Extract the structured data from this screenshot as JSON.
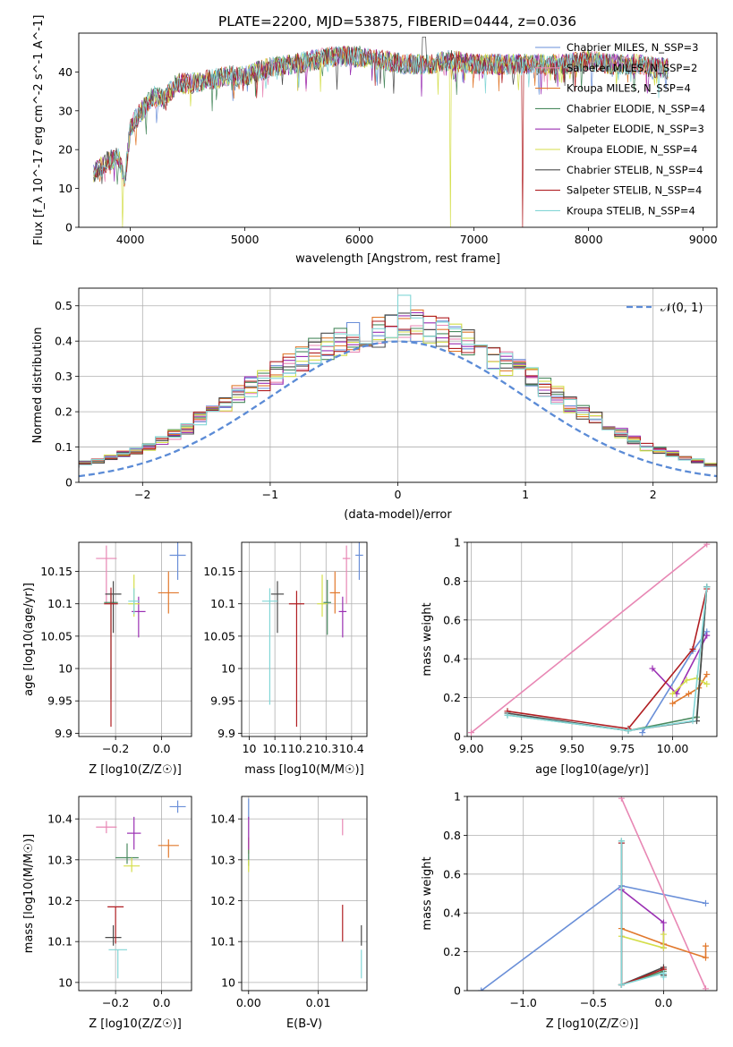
{
  "title": "PLATE=2200, MJD=53875, FIBERID=0444, z=0.036",
  "colors": [
    "#6a8fd8",
    "#e887b4",
    "#e1782c",
    "#4a8a5f",
    "#9a2fb3",
    "#d4de4a",
    "#4b4b4b",
    "#b01e22",
    "#82d6d6"
  ],
  "legend": [
    "Chabrier MILES, N_SSP=3",
    "Salpeter MILES, N_SSP=2",
    "Kroupa MILES, N_SSP=4",
    "Chabrier ELODIE, N_SSP=4",
    "Salpeter ELODIE, N_SSP=3",
    "Kroupa ELODIE, N_SSP=4",
    "Chabrier STELIB, N_SSP=4",
    "Salpeter STELIB, N_SSP=4",
    "Kroupa STELIB, N_SSP=4"
  ],
  "chart_data": [
    {
      "id": "spectrum",
      "type": "line",
      "xlabel": "wavelength [Angstrom, rest frame]",
      "ylabel": "Flux [f_λ 10^-17 erg cm^-2 s^-1 A^-1]",
      "xlim": [
        3550,
        9120
      ],
      "ylim": [
        0,
        50
      ],
      "xticks": [
        4000,
        5000,
        6000,
        7000,
        8000,
        9000
      ],
      "yticks": [
        0,
        10,
        20,
        30,
        40
      ],
      "grid": false,
      "legend_position": "right",
      "envelope": {
        "x": [
          3680,
          3800,
          3900,
          3950,
          4000,
          4100,
          4200,
          4300,
          4400,
          4500,
          4700,
          4860,
          5000,
          5200,
          5400,
          5600,
          5800,
          6000,
          6200,
          6400,
          6600,
          6800,
          7000,
          7200,
          7400,
          7600,
          7800,
          8000,
          8200,
          8400,
          8600,
          8700
        ],
        "y": [
          14,
          17,
          18,
          12,
          26,
          30,
          34,
          33,
          37,
          37,
          38,
          39,
          39,
          41,
          42,
          43,
          44,
          44,
          43,
          42,
          42,
          43,
          42,
          42,
          42,
          42,
          42,
          43,
          42,
          42,
          41,
          41
        ]
      },
      "drops": [
        {
          "series": "Kroupa ELODIE, N_SSP=4",
          "x": 3930
        },
        {
          "series": "Kroupa ELODIE, N_SSP=4",
          "x": 6790
        },
        {
          "series": "Salpeter STELIB, N_SSP=4",
          "x": 7420
        }
      ]
    },
    {
      "id": "residuals",
      "type": "bar",
      "xlabel": "(data-model)/error",
      "ylabel": "Normed distribution",
      "xlim": [
        -2.5,
        2.5
      ],
      "ylim": [
        0,
        0.55
      ],
      "xticks": [
        -2,
        -1,
        0,
        1,
        2
      ],
      "yticks": [
        0.0,
        0.1,
        0.2,
        0.3,
        0.4,
        0.5
      ],
      "grid": true,
      "legend_label": "𝒩(0, 1)",
      "bin_width": 0.1,
      "reference_curve": "N(0,1) standard normal density",
      "base_bins": [
        0.02,
        0.025,
        0.03,
        0.035,
        0.045,
        0.055,
        0.06,
        0.07,
        0.08,
        0.09,
        0.1,
        0.12,
        0.135,
        0.15,
        0.18,
        0.2,
        0.22,
        0.25,
        0.27,
        0.29,
        0.31,
        0.33,
        0.35,
        0.37,
        0.39,
        0.4,
        0.41,
        0.42,
        0.43,
        0.44,
        0.45,
        0.44,
        0.43,
        0.42,
        0.41,
        0.4,
        0.38,
        0.36,
        0.34,
        0.32,
        0.3,
        0.27,
        0.25,
        0.22,
        0.2,
        0.18,
        0.16,
        0.14,
        0.12,
        0.1,
        0.09,
        0.08,
        0.07,
        0.06,
        0.05,
        0.045,
        0.04,
        0.035,
        0.03,
        0.025
      ]
    },
    {
      "id": "age-vs-Z",
      "type": "scatter",
      "xlabel": "Z [log10(Z/Z☉)]",
      "ylabel": "age [log10(age/yr)]",
      "xlim": [
        -0.36,
        0.13
      ],
      "ylim": [
        9.895,
        10.195
      ],
      "xticks": [
        -0.2,
        0.0
      ],
      "xtick_labels": [
        "−0.2",
        "0.0"
      ],
      "yticks": [
        9.9,
        9.95,
        10.0,
        10.05,
        10.1,
        10.15
      ],
      "grid": true,
      "points": [
        {
          "x": 0.07,
          "y": 10.175,
          "xerr": 0.035,
          "yerr": [
            0.038,
            0.02
          ]
        },
        {
          "x": -0.24,
          "y": 10.17,
          "xerr": 0.045,
          "yerr": [
            0.07,
            0.02
          ]
        },
        {
          "x": 0.03,
          "y": 10.117,
          "xerr": 0.045,
          "yerr": [
            0.032,
            0.033
          ]
        },
        {
          "x": -0.22,
          "y": 10.102,
          "xerr": 0.03,
          "yerr": [
            0.15,
            0.015
          ]
        },
        {
          "x": -0.1,
          "y": 10.088,
          "xerr": 0.03,
          "yerr": [
            0.04,
            0.023
          ]
        },
        {
          "x": -0.12,
          "y": 10.1,
          "xerr": 0.025,
          "yerr": [
            0.02,
            0.045
          ]
        },
        {
          "x": -0.21,
          "y": 10.115,
          "xerr": 0.035,
          "yerr": [
            0.06,
            0.02
          ]
        },
        {
          "x": -0.22,
          "y": 10.1,
          "xerr": 0.03,
          "yerr": [
            0.19,
            0.025
          ]
        },
        {
          "x": -0.12,
          "y": 10.104,
          "xerr": 0.025,
          "yerr": [
            0.02,
            0.02
          ]
        }
      ]
    },
    {
      "id": "age-vs-mass",
      "type": "scatter",
      "xlabel": "mass [log10(M/M☉)]",
      "ylabel": "",
      "xlim": [
        9.97,
        10.46
      ],
      "ylim": [
        9.895,
        10.195
      ],
      "xticks": [
        10.0,
        10.1,
        10.2,
        10.3,
        10.4
      ],
      "yticks": [
        9.9,
        9.95,
        10.0,
        10.05,
        10.1,
        10.15
      ],
      "grid": true,
      "points": [
        {
          "x": 10.43,
          "y": 10.175,
          "xerr": 0.015,
          "yerr": [
            0.038,
            0.02
          ]
        },
        {
          "x": 10.38,
          "y": 10.17,
          "xerr": 0.015,
          "yerr": [
            0.07,
            0.02
          ]
        },
        {
          "x": 10.335,
          "y": 10.117,
          "xerr": 0.02,
          "yerr": [
            0.032,
            0.033
          ]
        },
        {
          "x": 10.305,
          "y": 10.102,
          "xerr": 0.015,
          "yerr": [
            0.05,
            0.035
          ]
        },
        {
          "x": 10.365,
          "y": 10.088,
          "xerr": 0.015,
          "yerr": [
            0.04,
            0.023
          ]
        },
        {
          "x": 10.285,
          "y": 10.1,
          "xerr": 0.02,
          "yerr": [
            0.02,
            0.045
          ]
        },
        {
          "x": 10.11,
          "y": 10.115,
          "xerr": 0.025,
          "yerr": [
            0.06,
            0.02
          ]
        },
        {
          "x": 10.185,
          "y": 10.1,
          "xerr": 0.03,
          "yerr": [
            0.19,
            0.02
          ]
        },
        {
          "x": 10.08,
          "y": 10.104,
          "xerr": 0.03,
          "yerr": [
            0.16,
            0.02
          ]
        }
      ]
    },
    {
      "id": "weight-vs-age",
      "type": "line",
      "xlabel": "age [log10(age/yr)]",
      "ylabel": "mass weight",
      "xlim": [
        8.98,
        10.22
      ],
      "ylim": [
        0,
        1
      ],
      "xticks": [
        9.0,
        9.25,
        9.5,
        9.75,
        10.0
      ],
      "xtick_labels": [
        "9.00",
        "9.25",
        "9.50",
        "9.75",
        "10.00"
      ],
      "yticks": [
        0.0,
        0.2,
        0.4,
        0.6,
        0.8,
        1.0
      ],
      "grid": true,
      "series": [
        {
          "name": "Chabrier MILES, N_SSP=3",
          "x": [
            9.85,
            10.1,
            10.17
          ],
          "y": [
            0.02,
            0.44,
            0.54
          ]
        },
        {
          "name": "Salpeter MILES, N_SSP=2",
          "x": [
            9.0,
            10.17
          ],
          "y": [
            0.02,
            0.99
          ]
        },
        {
          "name": "Kroupa MILES, N_SSP=4",
          "x": [
            10.0,
            10.08,
            10.13,
            10.17
          ],
          "y": [
            0.17,
            0.22,
            0.25,
            0.32
          ]
        },
        {
          "name": "Chabrier ELODIE, N_SSP=4",
          "x": [
            9.18,
            9.78,
            10.12,
            10.17
          ],
          "y": [
            0.11,
            0.03,
            0.1,
            0.77
          ]
        },
        {
          "name": "Salpeter ELODIE, N_SSP=3",
          "x": [
            9.9,
            10.02,
            10.17
          ],
          "y": [
            0.35,
            0.22,
            0.52
          ]
        },
        {
          "name": "Kroupa ELODIE, N_SSP=4",
          "x": [
            10.0,
            10.07,
            10.12,
            10.17
          ],
          "y": [
            0.22,
            0.29,
            0.3,
            0.27
          ]
        },
        {
          "name": "Chabrier STELIB, N_SSP=4",
          "x": [
            9.18,
            9.78,
            10.12,
            10.17
          ],
          "y": [
            0.12,
            0.03,
            0.08,
            0.77
          ]
        },
        {
          "name": "Salpeter STELIB, N_SSP=4",
          "x": [
            9.18,
            9.78,
            10.1,
            10.17
          ],
          "y": [
            0.13,
            0.04,
            0.45,
            0.76
          ]
        },
        {
          "name": "Kroupa STELIB, N_SSP=4",
          "x": [
            9.18,
            9.78,
            10.1,
            10.17
          ],
          "y": [
            0.11,
            0.03,
            0.08,
            0.77
          ]
        }
      ]
    },
    {
      "id": "mass-vs-Z",
      "type": "scatter",
      "xlabel": "Z [log10(Z/Z☉)]",
      "ylabel": "mass [log10(M/M☉)]",
      "xlim": [
        -0.36,
        0.13
      ],
      "ylim": [
        9.98,
        10.455
      ],
      "xticks": [
        -0.2,
        0.0
      ],
      "xtick_labels": [
        "−0.2",
        "0.0"
      ],
      "yticks": [
        10.0,
        10.1,
        10.2,
        10.3,
        10.4
      ],
      "grid": true,
      "points": [
        {
          "x": 0.07,
          "y": 10.43,
          "xerr": 0.035,
          "yerr": [
            0.015,
            0.015
          ]
        },
        {
          "x": -0.24,
          "y": 10.38,
          "xerr": 0.045,
          "yerr": [
            0.015,
            0.015
          ]
        },
        {
          "x": 0.03,
          "y": 10.335,
          "xerr": 0.045,
          "yerr": [
            0.03,
            0.015
          ]
        },
        {
          "x": -0.15,
          "y": 10.305,
          "xerr": 0.05,
          "yerr": [
            0.015,
            0.035
          ]
        },
        {
          "x": -0.12,
          "y": 10.365,
          "xerr": 0.03,
          "yerr": [
            0.04,
            0.04
          ]
        },
        {
          "x": -0.13,
          "y": 10.285,
          "xerr": 0.035,
          "yerr": [
            0.015,
            0.02
          ]
        },
        {
          "x": -0.21,
          "y": 10.11,
          "xerr": 0.035,
          "yerr": [
            0.02,
            0.03
          ]
        },
        {
          "x": -0.2,
          "y": 10.185,
          "xerr": 0.035,
          "yerr": [
            0.09,
            0.0
          ]
        },
        {
          "x": -0.19,
          "y": 10.08,
          "xerr": 0.04,
          "yerr": [
            0.07,
            0.0
          ]
        }
      ]
    },
    {
      "id": "mass-vs-EBV",
      "type": "scatter",
      "xlabel": "E(B-V)",
      "ylabel": "",
      "xlim": [
        -0.001,
        0.017
      ],
      "ylim": [
        9.98,
        10.455
      ],
      "xticks": [
        0.0,
        0.01
      ],
      "xtick_labels": [
        "0.00",
        "0.01"
      ],
      "yticks": [
        10.0,
        10.1,
        10.2,
        10.3,
        10.4
      ],
      "grid": true,
      "points": [
        {
          "x": 0.0,
          "y": 10.43,
          "yerr": [
            0.03,
            0.02
          ]
        },
        {
          "x": 0.0135,
          "y": 10.38,
          "yerr": [
            0.02,
            0.02
          ]
        },
        {
          "x": 0.0,
          "y": 10.335,
          "yerr": [
            0.02,
            0.02
          ]
        },
        {
          "x": 0.0,
          "y": 10.305,
          "yerr": [
            0.02,
            0.02
          ]
        },
        {
          "x": 0.0,
          "y": 10.365,
          "yerr": [
            0.04,
            0.04
          ]
        },
        {
          "x": 0.0,
          "y": 10.285,
          "yerr": [
            0.015,
            0.015
          ]
        },
        {
          "x": 0.0162,
          "y": 10.11,
          "yerr": [
            0.02,
            0.03
          ]
        },
        {
          "x": 0.0135,
          "y": 10.145,
          "yerr": [
            0.045,
            0.045
          ]
        },
        {
          "x": 0.0162,
          "y": 10.08,
          "yerr": [
            0.07,
            0.0
          ]
        }
      ]
    },
    {
      "id": "weight-vs-Z",
      "type": "line",
      "xlabel": "Z [log10(Z/Z☉)]",
      "ylabel": "mass weight",
      "xlim": [
        -1.4,
        0.38
      ],
      "ylim": [
        0,
        1
      ],
      "xticks": [
        -1.0,
        -0.5,
        0.0
      ],
      "xtick_labels": [
        "−1.0",
        "−0.5",
        "0.0"
      ],
      "yticks": [
        0.0,
        0.2,
        0.4,
        0.6,
        0.8,
        1.0
      ],
      "grid": true,
      "series": [
        {
          "name": "Chabrier MILES, N_SSP=3",
          "x": [
            -1.3,
            -0.3,
            0.3
          ],
          "y": [
            0.0,
            0.54,
            0.45
          ]
        },
        {
          "name": "Salpeter MILES, N_SSP=2",
          "x": [
            -0.3,
            0.3
          ],
          "y": [
            0.99,
            0.01
          ]
        },
        {
          "name": "Kroupa MILES, N_SSP=4",
          "x": [
            -0.3,
            0.0,
            0.3,
            0.3
          ],
          "y": [
            0.32,
            0.24,
            0.17,
            0.23
          ]
        },
        {
          "name": "Chabrier ELODIE, N_SSP=4",
          "x": [
            -0.3,
            -0.3,
            0.0,
            0.0
          ],
          "y": [
            0.77,
            0.03,
            0.1,
            0.08
          ]
        },
        {
          "name": "Salpeter ELODIE, N_SSP=3",
          "x": [
            -0.3,
            0.0,
            0.0
          ],
          "y": [
            0.52,
            0.35,
            0.22
          ]
        },
        {
          "name": "Kroupa ELODIE, N_SSP=4",
          "x": [
            -0.3,
            0.0,
            0.0
          ],
          "y": [
            0.28,
            0.22,
            0.29
          ]
        },
        {
          "name": "Chabrier STELIB, N_SSP=4",
          "x": [
            -0.3,
            -0.3,
            0.0,
            0.0
          ],
          "y": [
            0.76,
            0.03,
            0.12,
            0.08
          ]
        },
        {
          "name": "Salpeter STELIB, N_SSP=4",
          "x": [
            -0.3,
            -0.3,
            0.0
          ],
          "y": [
            0.76,
            0.03,
            0.11
          ]
        },
        {
          "name": "Kroupa STELIB, N_SSP=4",
          "x": [
            -0.3,
            -0.3,
            0.0,
            0.0
          ],
          "y": [
            0.77,
            0.03,
            0.09,
            0.07
          ]
        }
      ]
    }
  ]
}
